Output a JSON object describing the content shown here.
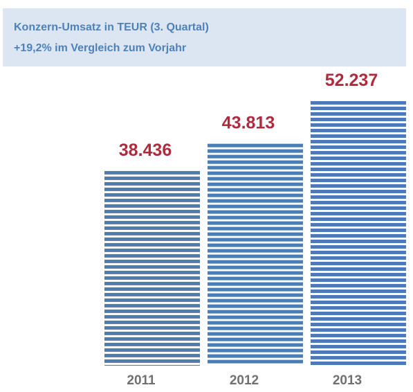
{
  "header": {
    "title": "Konzern-Umsatz in TEUR (3. Quartal)",
    "subtitle": "+19,2% im Vergleich zum Vorjahr"
  },
  "chart_data": {
    "type": "bar",
    "title": "Konzern-Umsatz in TEUR (3. Quartal)",
    "subtitle": "+19,2% im Vergleich zum Vorjahr",
    "xlabel": "",
    "ylabel": "",
    "categories": [
      "2011",
      "2012",
      "2013"
    ],
    "values": [
      38436,
      43813,
      52237
    ],
    "value_labels": [
      "38.436",
      "43.813",
      "52.237"
    ],
    "grid": false,
    "legend": "none",
    "colors": {
      "bar": "#4a7db3",
      "value_label": "#b0293d",
      "category_label": "#707070"
    }
  }
}
